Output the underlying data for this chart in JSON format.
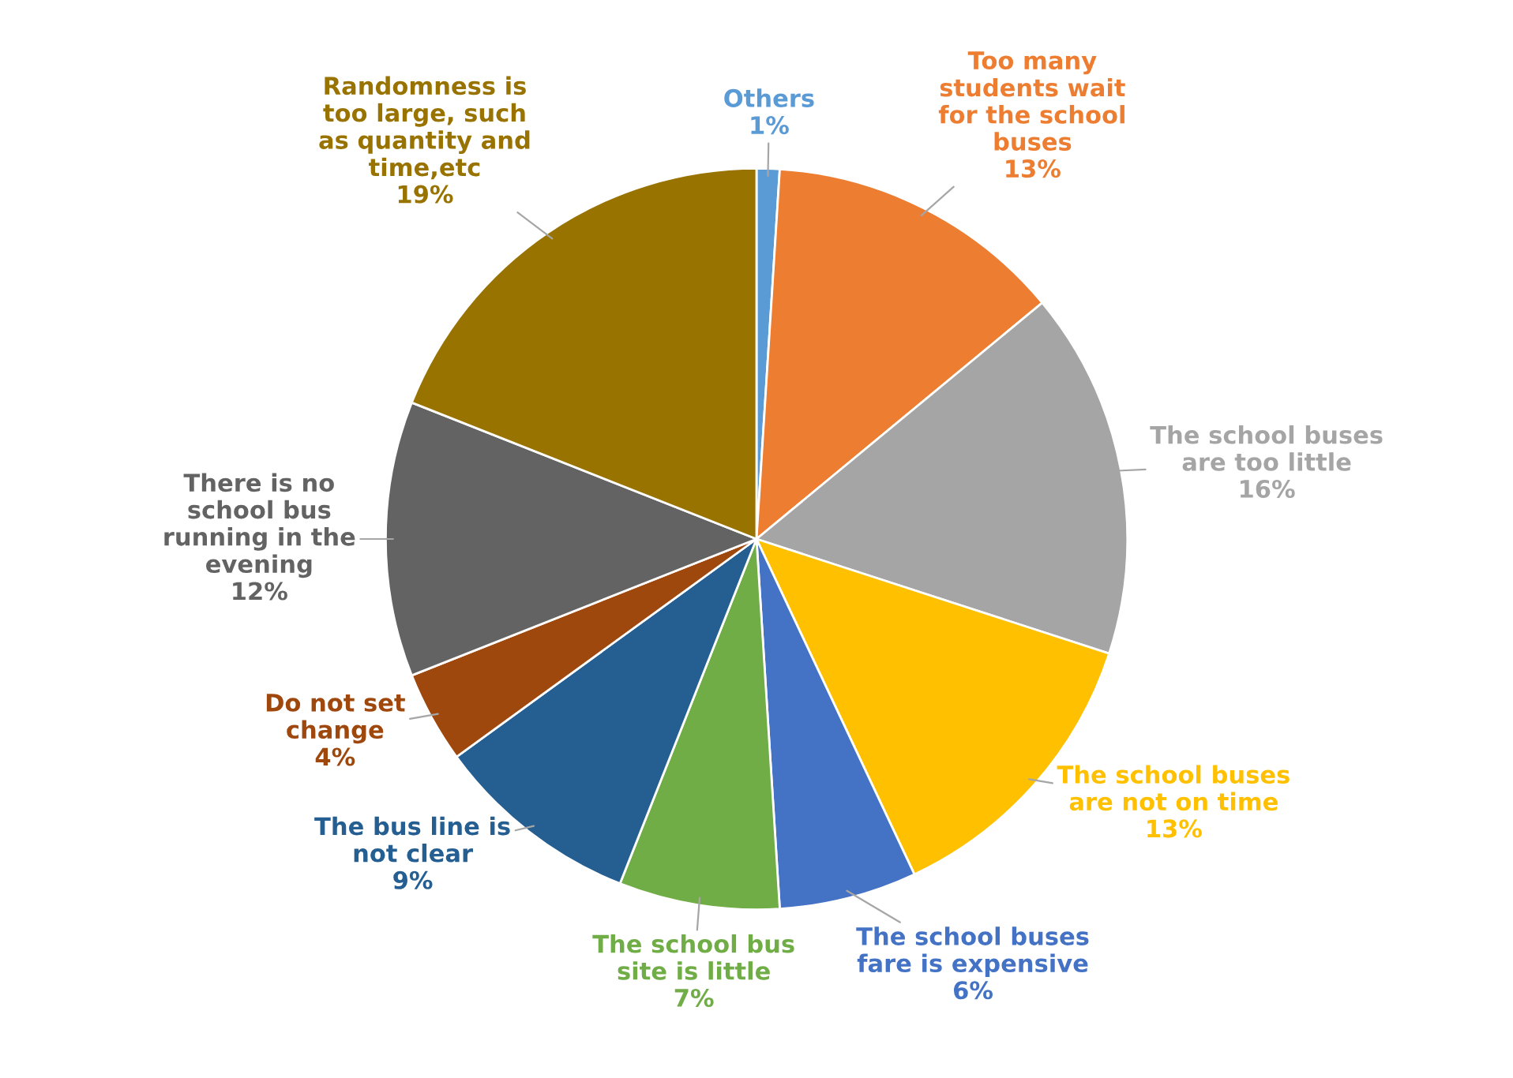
{
  "chart_data": {
    "type": "pie",
    "categories": [
      "Others",
      "Too many\nstudents wait\nfor the school\nbuses",
      "The school buses\nare too little",
      "The school buses\nare not on time",
      "The school buses\nfare is expensive",
      "The school bus\nsite is little",
      "The bus line is\nnot clear",
      "Do not set\nchange",
      "There is no\nschool bus\nrunning in the\nevening",
      "Randomness is\ntoo large, such\nas quantity and\ntime,etc"
    ],
    "values": [
      1,
      13,
      16,
      13,
      6,
      7,
      9,
      4,
      12,
      19
    ],
    "value_labels": [
      "1%",
      "13%",
      "16%",
      "13%",
      "6%",
      "7%",
      "9%",
      "4%",
      "12%",
      "19%"
    ],
    "colors": [
      "#5b9bd5",
      "#ed7d31",
      "#a5a5a5",
      "#ffc000",
      "#4472c4",
      "#70ad47",
      "#255e91",
      "#9e480e",
      "#636363",
      "#997300"
    ]
  }
}
